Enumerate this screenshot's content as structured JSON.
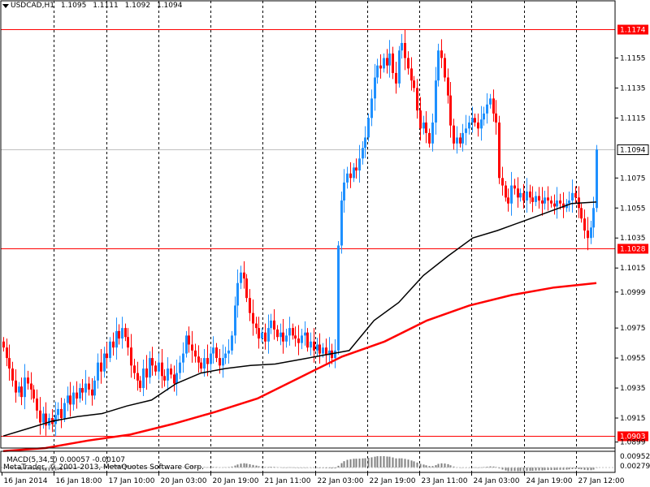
{
  "header": {
    "symbol_tf": "USDCAD,H1",
    "open": "1.1095",
    "high": "1.1111",
    "low": "1.1092",
    "close": "1.1094"
  },
  "macd": {
    "title": "MACD(5,34,5) 0.00057 -0.00107",
    "levels": [
      "0.00952",
      "0.00279"
    ]
  },
  "copyright": "MetaTrader, © 2001-2013, MetaQuotes Software Corp.",
  "colors": {
    "background": "#ffffff",
    "bull_candle": "#1e90ff",
    "bear_candle": "#ff0000",
    "ma_fast": "#000000",
    "ma_slow": "#ff0000",
    "hlines": "#ff0000",
    "current_line": "#c0c0c0",
    "label_fill": "#ff0000",
    "histogram": "#808080"
  },
  "chart_data": {
    "type": "candlestick",
    "price_axis": {
      "ticks": [
        "1.1155",
        "1.1135",
        "1.1115",
        "1.1075",
        "1.1055",
        "1.1035",
        "1.1015",
        "1.0999",
        "1.0975",
        "1.0955",
        "1.0935",
        "1.0915",
        "1.0899"
      ],
      "range": [
        1.0895,
        1.1185
      ]
    },
    "horizontal_lines": [
      {
        "value": 1.1174,
        "label": "1.1174"
      },
      {
        "value": 1.1028,
        "label": "1.1028"
      },
      {
        "value": 1.0903,
        "label": "1.0903"
      }
    ],
    "current_price": {
      "value": 1.1094,
      "label": "1.1094"
    },
    "time_labels": [
      "16 Jan 2014",
      "16 Jan 18:00",
      "17 Jan 10:00",
      "20 Jan 03:00",
      "20 Jan 19:00",
      "21 Jan 11:00",
      "22 Jan 03:00",
      "22 Jan 19:00",
      "23 Jan 11:00",
      "24 Jan 03:00",
      "24 Jan 19:00",
      "27 Jan 12:00"
    ],
    "closes": [
      1.0962,
      1.0955,
      1.0948,
      1.094,
      1.0932,
      1.0936,
      1.0929,
      1.0942,
      1.0938,
      1.0934,
      1.0928,
      1.092,
      1.0912,
      1.0918,
      1.091,
      1.0915,
      1.0911,
      1.0917,
      1.0921,
      1.0915,
      1.0925,
      1.093,
      1.0924,
      1.0932,
      1.0928,
      1.0935,
      1.0932,
      1.0938,
      1.0934,
      1.093,
      1.094,
      1.0952,
      1.0946,
      1.0958,
      1.0955,
      1.0966,
      1.0962,
      1.0973,
      1.0968,
      1.0975,
      1.0969,
      1.0962,
      1.095,
      1.0945,
      1.094,
      1.0935,
      1.0948,
      1.0942,
      1.0955,
      1.095,
      1.0946,
      1.0952,
      1.0943,
      1.094,
      1.0948,
      1.0944,
      1.0938,
      1.0945,
      1.0952,
      1.0958,
      1.097,
      1.0964,
      1.096,
      1.0956,
      1.0952,
      1.0948,
      1.0955,
      1.0951,
      1.0958,
      1.0962,
      1.0955,
      1.095,
      1.0955,
      1.0958,
      1.096,
      1.097,
      1.099,
      1.1005,
      1.1012,
      1.1008,
      1.0995,
      1.0985,
      1.0978,
      1.0975,
      1.0968,
      1.0972,
      1.0966,
      1.0975,
      1.098,
      1.0974,
      1.0969,
      1.0972,
      1.0966,
      1.097,
      1.0975,
      1.097,
      1.0968,
      1.0965,
      1.097,
      1.0972,
      1.0962,
      1.0966,
      1.096,
      1.0964,
      1.0958,
      1.0962,
      1.0957,
      1.096,
      1.0955,
      1.096,
      1.103,
      1.106,
      1.1072,
      1.1078,
      1.1075,
      1.1082,
      1.108,
      1.1088,
      1.1095,
      1.1102,
      1.1115,
      1.1128,
      1.1142,
      1.115,
      1.1148,
      1.1155,
      1.115,
      1.1158,
      1.1145,
      1.1138,
      1.116,
      1.1165,
      1.1155,
      1.1148,
      1.114,
      1.1135,
      1.112,
      1.1108,
      1.1112,
      1.1105,
      1.1098,
      1.1112,
      1.114,
      1.116,
      1.1155,
      1.1142,
      1.113,
      1.111,
      1.1098,
      1.1102,
      1.1098,
      1.1105,
      1.1108,
      1.1112,
      1.1115,
      1.1112,
      1.1108,
      1.1114,
      1.1118,
      1.1124,
      1.1128,
      1.1118,
      1.1112,
      1.1075,
      1.107,
      1.1062,
      1.1058,
      1.107,
      1.1068,
      1.1062,
      1.1065,
      1.106,
      1.1066,
      1.1062,
      1.1059,
      1.1063,
      1.106,
      1.1058,
      1.1062,
      1.106,
      1.1058,
      1.1056,
      1.106,
      1.1058,
      1.1055,
      1.1058,
      1.106,
      1.1065,
      1.1062,
      1.1055,
      1.1048,
      1.104,
      1.1035,
      1.1042,
      1.1055,
      1.1094
    ],
    "ma_fast": [
      1.0903,
      1.0908,
      1.0913,
      1.0916,
      1.0918,
      1.0923,
      1.0927,
      1.0938,
      1.0945,
      1.0948,
      1.095,
      1.0951,
      1.0954,
      1.0957,
      1.096,
      1.098,
      1.0992,
      1.101,
      1.1023,
      1.1035,
      1.104,
      1.1046,
      1.1052,
      1.1058,
      1.1059
    ],
    "ma_slow": [
      1.0893,
      1.0895,
      1.09,
      1.0904,
      1.0911,
      1.0919,
      1.0928,
      1.0942,
      1.0956,
      1.0966,
      1.098,
      1.099,
      1.0997,
      1.1002,
      1.1005
    ],
    "xlabel": "",
    "ylabel": ""
  }
}
